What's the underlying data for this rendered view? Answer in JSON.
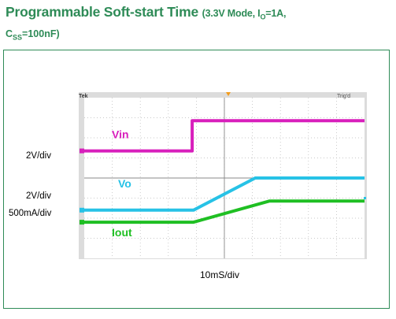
{
  "header": {
    "title_main": "Programmable Soft-start Time",
    "cond_open": "(3.3V Mode, I",
    "io_sub": "O",
    "io_rest": "=1A,",
    "css_main": "C",
    "css_sub": "SS",
    "css_rest": "=100nF)"
  },
  "scope": {
    "brand": "Tek",
    "status": "Trig'd",
    "time_div": "10mS/div"
  },
  "scales": {
    "vin_scale": "2V/div",
    "vo_scale": "2V/div",
    "iout_scale": "500mA/div"
  },
  "colors": {
    "title": "#2e8b57",
    "vin": "#d81fbc",
    "vo": "#27c2e6",
    "iout": "#1fbf23",
    "frame": "#2e8b57"
  },
  "chart_data": {
    "type": "line",
    "title": "Programmable Soft-start Time (3.3V Mode, IO=1A, CSS=100nF)",
    "xlabel": "10mS/div",
    "x_unit": "divisions",
    "xlim": [
      0,
      10
    ],
    "ylim": [
      0,
      8
    ],
    "grid": true,
    "series": [
      {
        "name": "Vin",
        "x": [
          0,
          3.85,
          3.85,
          10
        ],
        "y": [
          5.35,
          5.35,
          6.85,
          6.85
        ]
      },
      {
        "name": "Vo",
        "x": [
          0,
          3.9,
          6.1,
          10
        ],
        "y": [
          2.4,
          2.4,
          4.0,
          4.0
        ]
      },
      {
        "name": "Iout",
        "x": [
          0,
          3.9,
          6.6,
          10
        ],
        "y": [
          1.8,
          1.8,
          2.85,
          2.85
        ]
      }
    ]
  }
}
